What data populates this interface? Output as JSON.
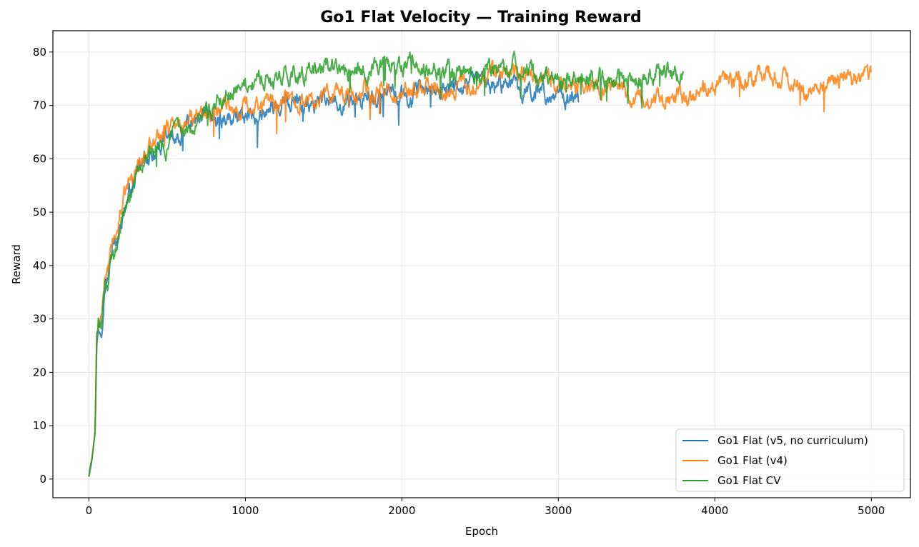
{
  "chart_data": {
    "type": "line",
    "title": "Go1 Flat Velocity — Training Reward",
    "xlabel": "Epoch",
    "ylabel": "Reward",
    "xlim": [
      -230,
      5250
    ],
    "ylim": [
      -3.5,
      84
    ],
    "xticks": [
      0,
      1000,
      2000,
      3000,
      4000,
      5000
    ],
    "yticks": [
      0,
      10,
      20,
      30,
      40,
      50,
      60,
      70,
      80
    ],
    "xtick_labels": [
      "0",
      "1000",
      "2000",
      "3000",
      "4000",
      "5000"
    ],
    "ytick_labels": [
      "0",
      "10",
      "20",
      "30",
      "40",
      "50",
      "60",
      "70",
      "80"
    ],
    "grid": true,
    "legend_position": "bottom-right",
    "series": [
      {
        "name": "Go1 Flat (v5, no curriculum)",
        "color": "#1f77b4",
        "x": [
          0,
          20,
          40,
          50,
          60,
          80,
          100,
          120,
          150,
          180,
          200,
          250,
          300,
          350,
          400,
          450,
          500,
          600,
          700,
          800,
          900,
          1000,
          1100,
          1200,
          1300,
          1400,
          1500,
          1600,
          1700,
          1800,
          1900,
          2000,
          2100,
          2200,
          2300,
          2400,
          2500,
          2600,
          2700,
          2800,
          2900,
          3000,
          3050,
          3100,
          3130
        ],
        "y": [
          0.5,
          4,
          9,
          25,
          28,
          29,
          37,
          38,
          43,
          45,
          48,
          53,
          56,
          59,
          61,
          62,
          63,
          65,
          66,
          67,
          68,
          68.5,
          69,
          69.5,
          70,
          70,
          70,
          70.5,
          71,
          71,
          72,
          71.5,
          72,
          72.5,
          73,
          73.5,
          74,
          74,
          73.5,
          73,
          72.5,
          72,
          71.5,
          71.5,
          71.5
        ]
      },
      {
        "name": "Go1 Flat (v4)",
        "color": "#ff7f0e",
        "x": [
          0,
          20,
          40,
          50,
          60,
          80,
          100,
          120,
          150,
          180,
          200,
          250,
          300,
          350,
          400,
          450,
          500,
          600,
          700,
          800,
          900,
          1000,
          1100,
          1200,
          1300,
          1400,
          1500,
          1600,
          1700,
          1800,
          1900,
          2000,
          2100,
          2200,
          2300,
          2400,
          2500,
          2600,
          2700,
          2800,
          2900,
          3000,
          3100,
          3200,
          3300,
          3400,
          3500,
          3600,
          3700,
          3800,
          3900,
          4000,
          4100,
          4200,
          4300,
          4400,
          4500,
          4600,
          4700,
          4800,
          4900,
          5000
        ],
        "y": [
          0.5,
          4,
          9,
          27,
          28,
          29,
          38,
          38,
          44,
          46,
          50,
          55,
          58,
          61,
          63,
          65,
          66,
          66.5,
          68,
          69,
          69.5,
          70,
          70.5,
          71,
          71.5,
          71.5,
          72,
          72,
          72,
          72,
          72.5,
          72.5,
          72.5,
          73,
          73,
          74,
          75,
          76,
          77,
          76,
          75,
          74.5,
          74,
          73.5,
          73,
          72.5,
          72,
          71,
          71.5,
          72,
          73,
          74.5,
          75,
          75,
          75.5,
          75,
          74.5,
          73,
          74,
          74.5,
          75,
          76
        ]
      },
      {
        "name": "Go1 Flat CV",
        "color": "#2ca02c",
        "x": [
          0,
          20,
          40,
          50,
          60,
          80,
          100,
          120,
          150,
          180,
          200,
          250,
          300,
          350,
          400,
          450,
          500,
          600,
          700,
          800,
          900,
          1000,
          1100,
          1200,
          1300,
          1400,
          1500,
          1600,
          1700,
          1800,
          1900,
          2000,
          2100,
          2200,
          2300,
          2400,
          2500,
          2600,
          2700,
          2800,
          2900,
          3000,
          3100,
          3200,
          3300,
          3400,
          3500,
          3600,
          3700,
          3800
        ],
        "y": [
          0.5,
          4,
          9,
          27,
          28,
          28,
          37,
          37,
          42,
          44,
          48,
          52,
          56,
          59,
          61,
          61.5,
          62,
          65,
          68,
          70,
          72,
          73,
          74,
          75,
          76,
          76.5,
          76.5,
          77,
          76.5,
          77,
          77,
          77.5,
          77.5,
          77,
          76.5,
          76.5,
          76.5,
          77,
          77,
          76.5,
          75.5,
          75,
          75,
          75,
          74.5,
          75,
          75,
          76,
          76.5,
          76
        ]
      }
    ]
  }
}
